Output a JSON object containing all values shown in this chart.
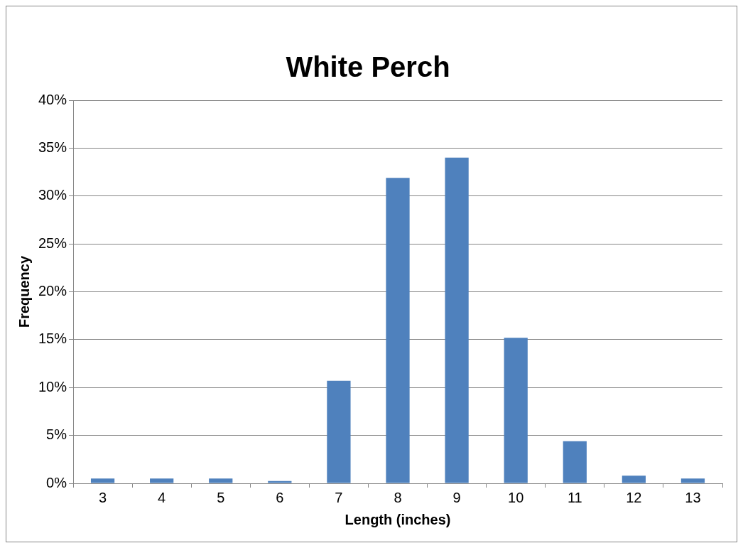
{
  "chart_data": {
    "type": "bar",
    "title": "White Perch",
    "xlabel": "Length (inches)",
    "ylabel": "Frequency",
    "categories": [
      "3",
      "4",
      "5",
      "6",
      "7",
      "8",
      "9",
      "10",
      "11",
      "12",
      "13"
    ],
    "values": [
      0.5,
      0.5,
      0.5,
      0.25,
      10.7,
      31.9,
      34.0,
      15.2,
      4.4,
      0.8,
      0.5
    ],
    "color": "#4f81bd",
    "ylim": [
      0,
      40
    ],
    "yticks": [
      {
        "value": 0,
        "label": "0%"
      },
      {
        "value": 5,
        "label": "5%"
      },
      {
        "value": 10,
        "label": "10%"
      },
      {
        "value": 15,
        "label": "15%"
      },
      {
        "value": 20,
        "label": "20%"
      },
      {
        "value": 25,
        "label": "25%"
      },
      {
        "value": 30,
        "label": "30%"
      },
      {
        "value": 35,
        "label": "35%"
      },
      {
        "value": 40,
        "label": "40%"
      }
    ],
    "grid": "y",
    "legend": false
  }
}
